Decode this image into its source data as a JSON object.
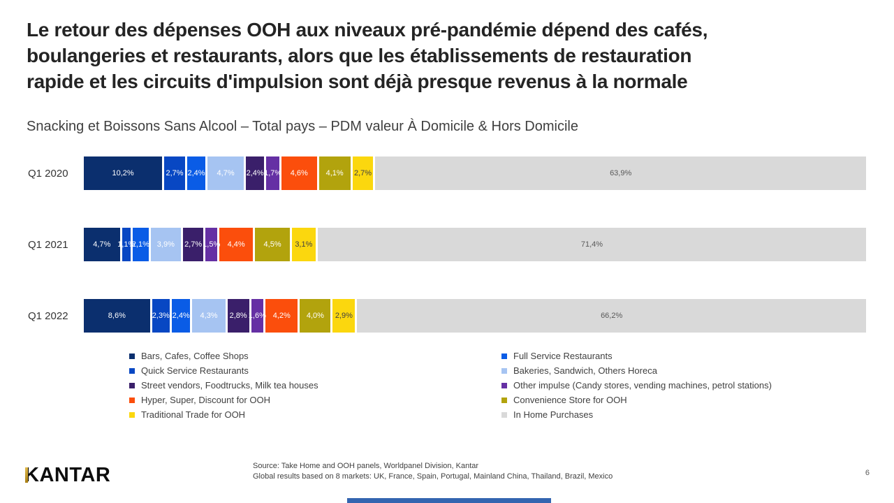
{
  "slide": {
    "title_lines": [
      "Le retour des dépenses OOH aux niveaux pré-pandémie dépend des cafés,",
      "boulangeries et restaurants, alors que les établissements de restauration",
      "rapide et les circuits d'impulsion sont déjà presque revenus à la normale"
    ],
    "subtitle": "Snacking et Boissons Sans Alcool – Total pays – PDM valeur À Domicile & Hors Domicile"
  },
  "chart_data": {
    "type": "bar",
    "stacked": true,
    "orientation": "horizontal",
    "unit": "% share of value",
    "categories": [
      "Q1 2020",
      "Q1 2021",
      "Q1 2022"
    ],
    "series": [
      {
        "name": "Bars, Cafes, Coffee Shops",
        "color": "#0B2F6E",
        "values": [
          10.2,
          4.7,
          8.6
        ],
        "labels": [
          "10,2%",
          "4,7%",
          "8,6%"
        ],
        "label_color": "#ffffff"
      },
      {
        "name": "Quick Service Restaurants",
        "color": "#0847C3",
        "values": [
          2.7,
          1.1,
          2.3
        ],
        "labels": [
          "2,7%",
          "1,1%",
          "2,3%"
        ],
        "label_color": "#ffffff"
      },
      {
        "name": "Full Service Restaurants",
        "color": "#0A5CE6",
        "values": [
          2.4,
          2.1,
          2.4
        ],
        "labels": [
          "2,4%",
          "2,1%",
          "2,4%"
        ],
        "label_color": "#ffffff"
      },
      {
        "name": "Bakeries, Sandwich, Others Horeca",
        "color": "#A6C4F2",
        "values": [
          4.7,
          3.9,
          4.3
        ],
        "labels": [
          "4,7%",
          "3,9%",
          "4,3%"
        ],
        "label_color": "#ffffff"
      },
      {
        "name": "Street vendors, Foodtrucks, Milk tea houses",
        "color": "#3A1F6A",
        "values": [
          2.4,
          2.7,
          2.8
        ],
        "labels": [
          "2,4%",
          "2,7%",
          "2,8%"
        ],
        "label_color": "#ffffff"
      },
      {
        "name": "Other impulse (Candy stores, vending machines, petrol stations)",
        "color": "#6530A4",
        "values": [
          1.7,
          1.5,
          1.6
        ],
        "labels": [
          "1,7%",
          "1,5%",
          "1,6%"
        ],
        "label_color": "#ffffff"
      },
      {
        "name": "Hyper, Super, Discount for OOH",
        "color": "#FB4E0C",
        "values": [
          4.6,
          4.4,
          4.2
        ],
        "labels": [
          "4,6%",
          "4,4%",
          "4,2%"
        ],
        "label_color": "#ffffff"
      },
      {
        "name": "Convenience Store for OOH",
        "color": "#B2A30D",
        "values": [
          4.1,
          4.5,
          4.0
        ],
        "labels": [
          "4,1%",
          "4,5%",
          "4,0%"
        ],
        "label_color": "#ffffff"
      },
      {
        "name": "Traditional Trade for OOH",
        "color": "#FBD70E",
        "values": [
          2.7,
          3.1,
          2.9
        ],
        "labels": [
          "2,7%",
          "3,1%",
          "2,9%"
        ],
        "label_color": "#404040"
      },
      {
        "name": "In Home Purchases",
        "color": "#D9D9D9",
        "values": [
          63.9,
          71.4,
          66.2
        ],
        "labels": [
          "63,9%",
          "71,4%",
          "66,2%"
        ],
        "label_color": "#595959"
      }
    ]
  },
  "legend": {
    "left": [
      {
        "label": "Bars, Cafes, Coffee Shops",
        "color": "#0B2F6E"
      },
      {
        "label": "Quick Service Restaurants",
        "color": "#0847C3"
      },
      {
        "label": "Street vendors, Foodtrucks, Milk tea houses",
        "color": "#3A1F6A"
      },
      {
        "label": "Hyper, Super, Discount for OOH",
        "color": "#FB4E0C"
      },
      {
        "label": "Traditional Trade for OOH",
        "color": "#FBD70E"
      }
    ],
    "right": [
      {
        "label": "Full Service Restaurants",
        "color": "#0A5CE6"
      },
      {
        "label": "Bakeries, Sandwich, Others Horeca",
        "color": "#A6C4F2"
      },
      {
        "label": "Other impulse (Candy stores, vending machines, petrol stations)",
        "color": "#6530A4"
      },
      {
        "label": "Convenience Store for OOH",
        "color": "#B2A30D"
      },
      {
        "label": "In Home Purchases",
        "color": "#D9D9D9"
      }
    ]
  },
  "footer": {
    "logo_text": "KANTAR",
    "source_line1": "Source: Take Home and OOH panels, Worldpanel Division, Kantar",
    "source_line2": "Global results based on 8 markets: UK, France, Spain, Portugal, Mainland China, Thailand, Brazil, Mexico",
    "page_number": "6"
  },
  "decor": {
    "bottom_bar_color": "#3465B0"
  }
}
